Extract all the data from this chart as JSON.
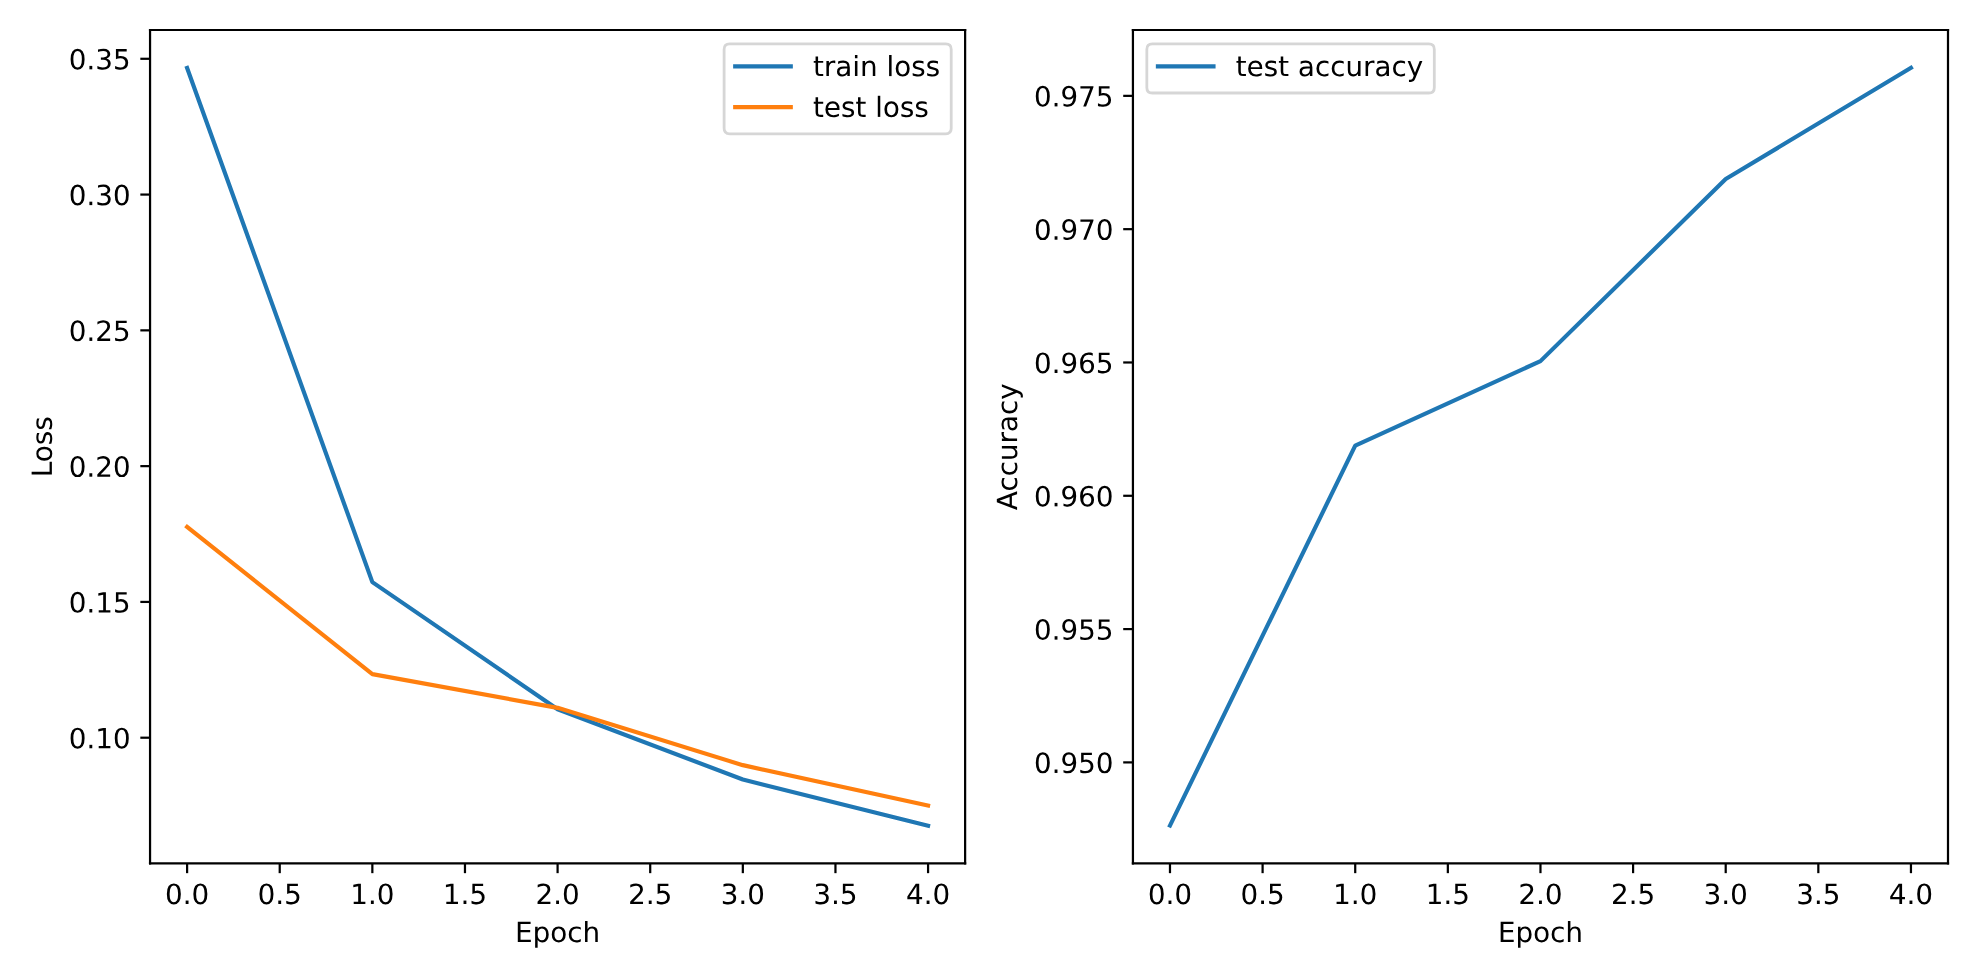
{
  "chart_data": [
    {
      "type": "line",
      "xlabel": "Epoch",
      "ylabel": "Loss",
      "x": [
        0,
        1,
        2,
        3,
        4
      ],
      "series": [
        {
          "name": "train loss",
          "color": "#1f77b4",
          "values": [
            0.3466,
            0.1573,
            0.1105,
            0.0846,
            0.0676
          ]
        },
        {
          "name": "test loss",
          "color": "#ff7f0e",
          "values": [
            0.1776,
            0.1234,
            0.111,
            0.0899,
            0.075
          ]
        }
      ],
      "xlim": [
        -0.2,
        4.2
      ],
      "xticks": [
        {
          "value": 0,
          "label": "0.0"
        },
        0.5,
        {
          "value": 1,
          "label": "1.0"
        },
        1.5,
        {
          "value": 2,
          "label": "2.0"
        },
        2.5,
        {
          "value": 3,
          "label": "3.0"
        },
        3.5,
        {
          "value": 4,
          "label": "4.0"
        }
      ],
      "ylim": [
        0.0537,
        0.3606
      ],
      "yticks": [
        {
          "value": 0.1,
          "label": "0.10"
        },
        0.15,
        {
          "value": 0.2,
          "label": "0.20"
        },
        0.25,
        {
          "value": 0.3,
          "label": "0.30"
        },
        0.35
      ],
      "legend": "top right",
      "grid": false
    },
    {
      "type": "line",
      "xlabel": "Epoch",
      "ylabel": "Accuracy",
      "x": [
        0,
        1,
        2,
        3,
        4
      ],
      "series": [
        {
          "name": "test accuracy",
          "color": "#1f77b4",
          "values": [
            0.94763,
            0.96188,
            0.96505,
            0.97188,
            0.97605
          ]
        }
      ],
      "xlim": [
        -0.2,
        4.2
      ],
      "xticks": [
        {
          "value": 0,
          "label": "0.0"
        },
        0.5,
        {
          "value": 1,
          "label": "1.0"
        },
        1.5,
        {
          "value": 2,
          "label": "2.0"
        },
        2.5,
        {
          "value": 3,
          "label": "3.0"
        },
        3.5,
        {
          "value": 4,
          "label": "4.0"
        }
      ],
      "ylim": [
        0.94621,
        0.97747
      ],
      "yticks": [
        {
          "value": 0.95,
          "label": "0.950"
        },
        0.955,
        {
          "value": 0.96,
          "label": "0.960"
        },
        0.965,
        {
          "value": 0.97,
          "label": "0.970"
        },
        0.975
      ],
      "legend": "top left",
      "grid": false
    }
  ]
}
